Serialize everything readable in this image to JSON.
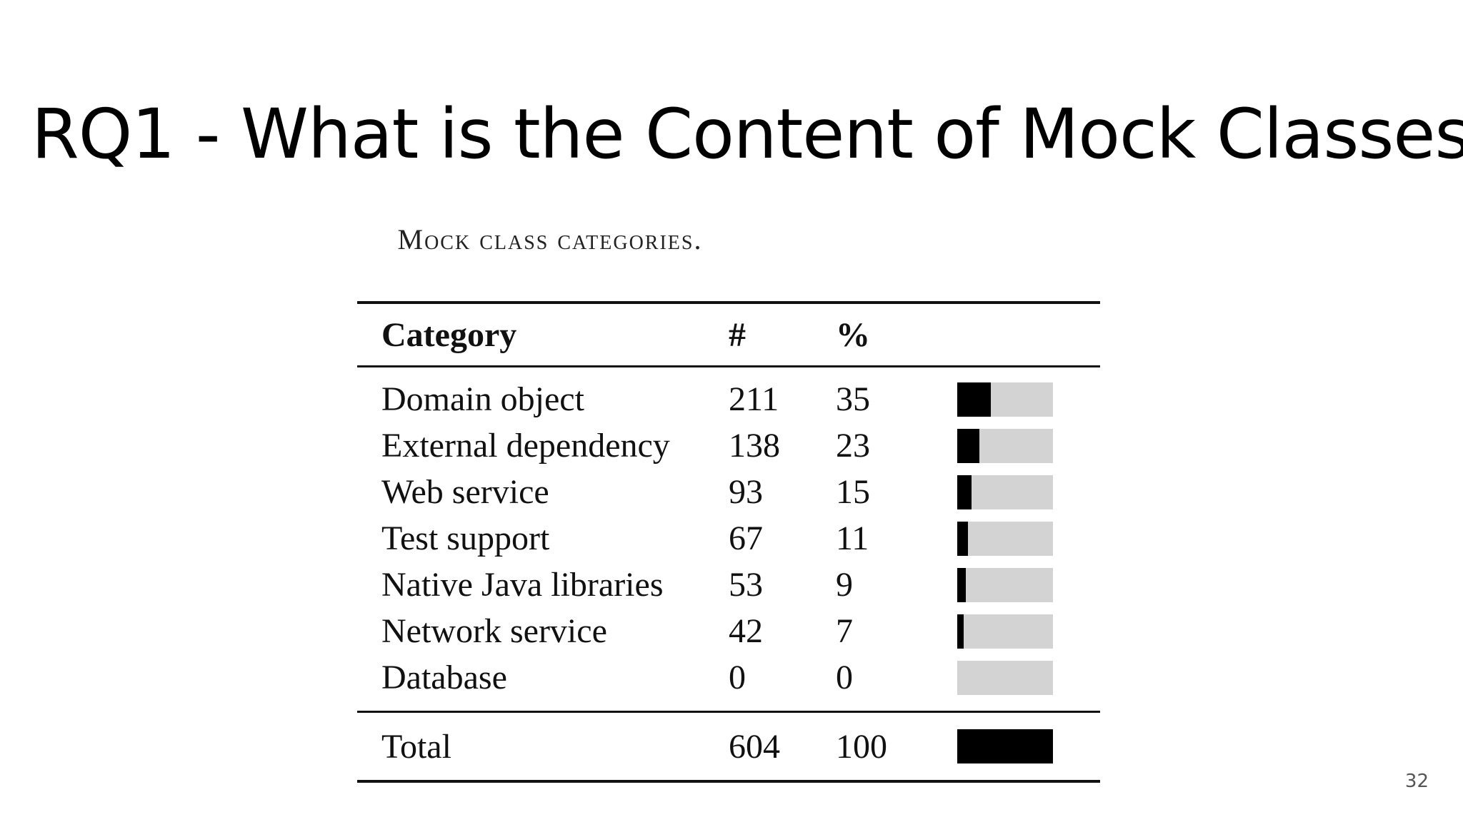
{
  "slide": {
    "title": "RQ1 - What is the Content of Mock Classes?",
    "page_number": "32"
  },
  "table": {
    "caption": "Mock class categories.",
    "headers": {
      "category": "Category",
      "count": "#",
      "percent": "%"
    },
    "rows": [
      {
        "category": "Domain object",
        "count": "211",
        "percent": "35",
        "fraction": 0.35
      },
      {
        "category": "External dependency",
        "count": "138",
        "percent": "23",
        "fraction": 0.23
      },
      {
        "category": "Web service",
        "count": "93",
        "percent": "15",
        "fraction": 0.15
      },
      {
        "category": "Test support",
        "count": "67",
        "percent": "11",
        "fraction": 0.11
      },
      {
        "category": "Native Java libraries",
        "count": "53",
        "percent": "9",
        "fraction": 0.09
      },
      {
        "category": "Network service",
        "count": "42",
        "percent": "7",
        "fraction": 0.07
      },
      {
        "category": "Database",
        "count": "0",
        "percent": "0",
        "fraction": 0
      }
    ],
    "total": {
      "category": "Total",
      "count": "604",
      "percent": "100",
      "fraction": 1.0
    },
    "colors": {
      "bar_fill": "#000000",
      "bar_track": "#d3d3d3"
    }
  }
}
